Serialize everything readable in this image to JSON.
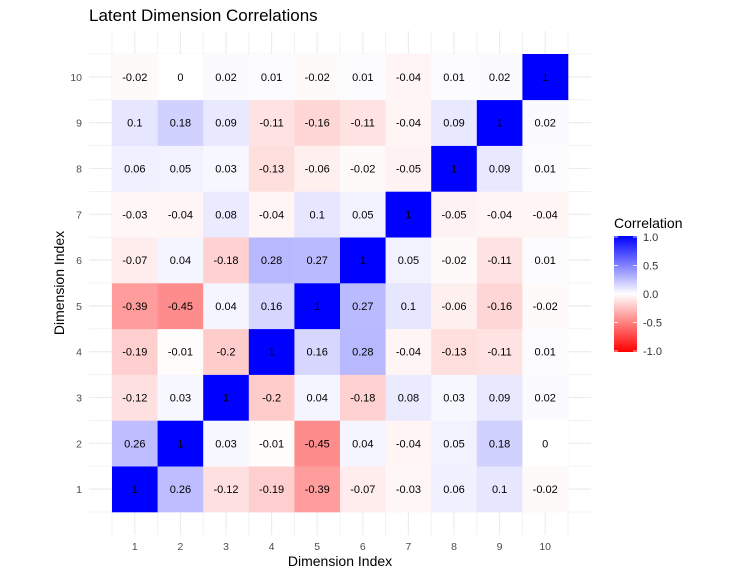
{
  "chart_data": {
    "type": "heatmap",
    "title": "Latent Dimension Correlations",
    "xlabel": "Dimension Index",
    "ylabel": "Dimension Index",
    "x_categories": [
      "1",
      "2",
      "3",
      "4",
      "5",
      "6",
      "7",
      "8",
      "9",
      "10"
    ],
    "y_categories": [
      "1",
      "2",
      "3",
      "4",
      "5",
      "6",
      "7",
      "8",
      "9",
      "10"
    ],
    "values": [
      [
        1,
        0.26,
        -0.12,
        -0.19,
        -0.39,
        -0.07,
        -0.03,
        0.06,
        0.1,
        -0.02
      ],
      [
        0.26,
        1,
        0.03,
        -0.01,
        -0.45,
        0.04,
        -0.04,
        0.05,
        0.18,
        0
      ],
      [
        -0.12,
        0.03,
        1,
        -0.2,
        0.04,
        -0.18,
        0.08,
        0.03,
        0.09,
        0.02
      ],
      [
        -0.19,
        -0.01,
        -0.2,
        1,
        0.16,
        0.28,
        -0.04,
        -0.13,
        -0.11,
        0.01
      ],
      [
        -0.39,
        -0.45,
        0.04,
        0.16,
        1,
        0.27,
        0.1,
        -0.06,
        -0.16,
        -0.02
      ],
      [
        -0.07,
        0.04,
        -0.18,
        0.28,
        0.27,
        1,
        0.05,
        -0.02,
        -0.11,
        0.01
      ],
      [
        -0.03,
        -0.04,
        0.08,
        -0.04,
        0.1,
        0.05,
        1,
        -0.05,
        -0.04,
        -0.04
      ],
      [
        0.06,
        0.05,
        0.03,
        -0.13,
        -0.06,
        -0.02,
        -0.05,
        1,
        0.09,
        0.01
      ],
      [
        0.1,
        0.18,
        0.09,
        -0.11,
        -0.16,
        -0.11,
        -0.04,
        0.09,
        1,
        0.02
      ],
      [
        -0.02,
        0,
        0.02,
        0.01,
        -0.02,
        0.01,
        -0.04,
        0.01,
        0.02,
        1
      ]
    ],
    "legend": {
      "title": "Correlation",
      "ticks": [
        "1.0",
        "0.5",
        "0.0",
        "-0.5",
        "-1.0"
      ],
      "tick_values": [
        1,
        0.5,
        0,
        -0.5,
        -1
      ],
      "placement": "right"
    },
    "color_scale": {
      "low": "#ff0000",
      "mid": "#ffffff",
      "high": "#0000ff",
      "range": [
        -1,
        1
      ]
    },
    "grid": true
  }
}
